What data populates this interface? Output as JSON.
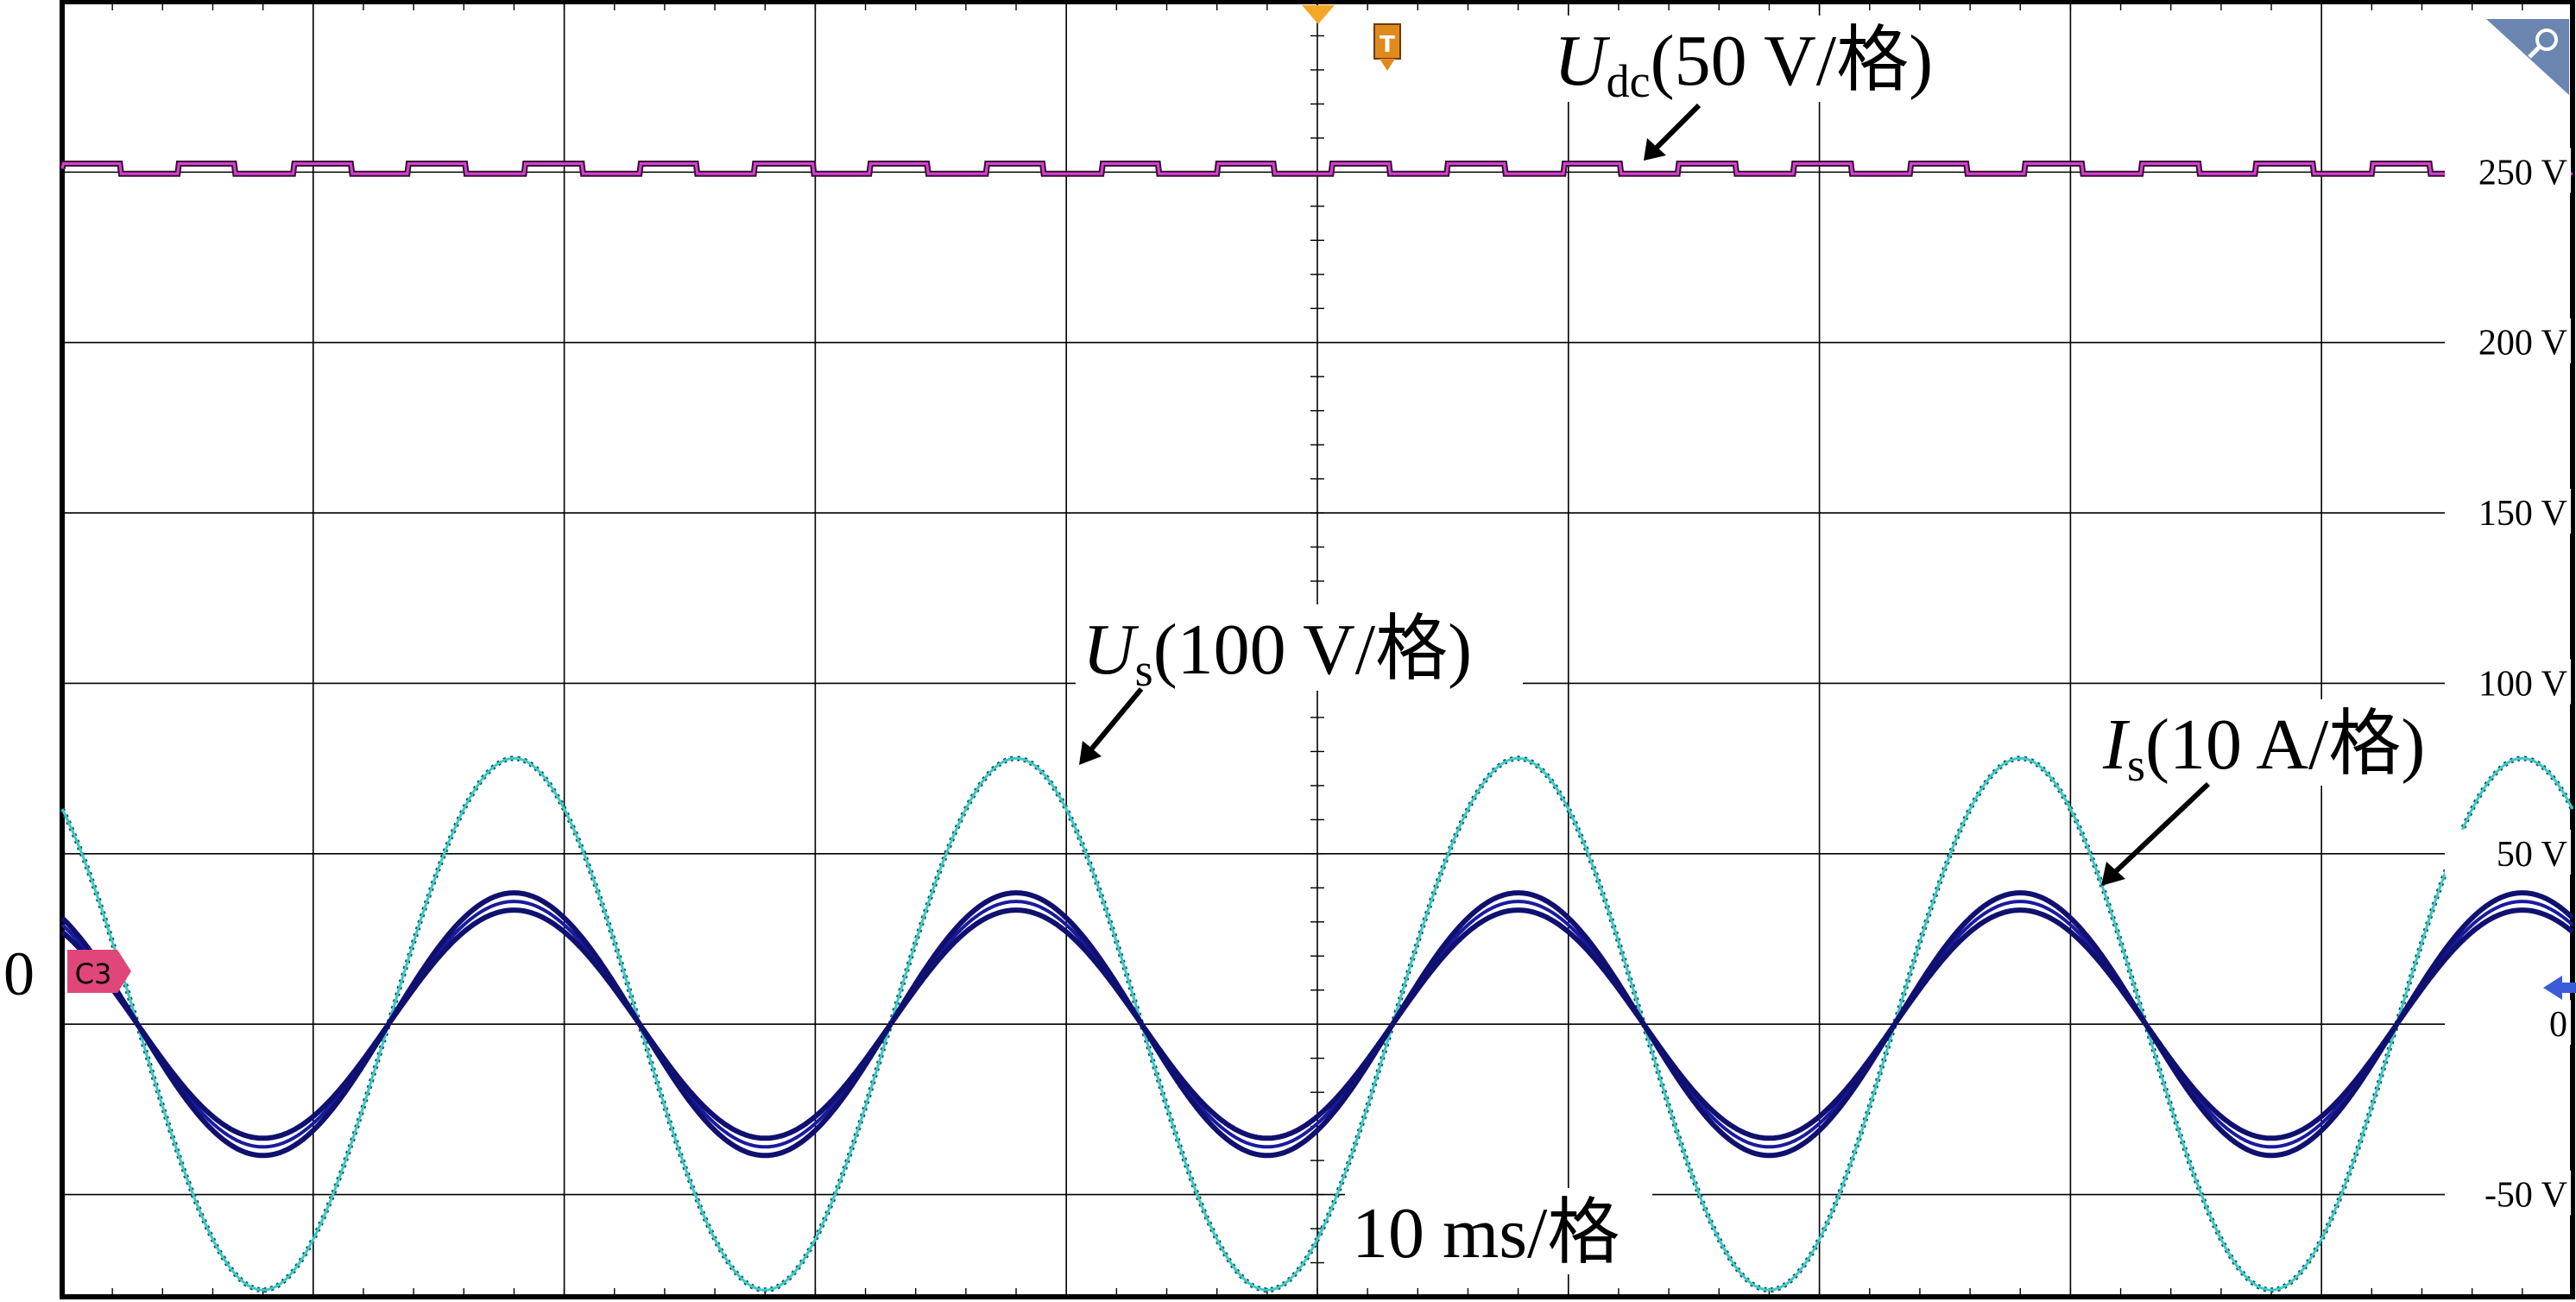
{
  "chart_data": {
    "type": "line",
    "timebase_label": "10 ms/格",
    "ground_label": "0",
    "channel_marker": "C3",
    "trigger_marker": "T",
    "x": {
      "unit": "ms",
      "range": [
        0,
        100
      ],
      "per_div": 10
    },
    "y": {
      "range": [
        -80,
        300
      ],
      "ticks": [
        {
          "value": 250,
          "label": "250 V"
        },
        {
          "value": 200,
          "label": "200 V"
        },
        {
          "value": 150,
          "label": "150 V"
        },
        {
          "value": 100,
          "label": "100 V"
        },
        {
          "value": 50,
          "label": "50 V"
        },
        {
          "value": 0,
          "label": "0"
        },
        {
          "value": -50,
          "label": "-50 V"
        }
      ]
    },
    "grid": true,
    "series": [
      {
        "name": "Udc",
        "label_main": "U",
        "label_sub": "dc",
        "label_scale": "(50 V/格)",
        "type": "dc",
        "level": 251,
        "ripple": 1.5,
        "color": "#d63fd6",
        "trace_color": "#3a1030"
      },
      {
        "name": "Us",
        "label_main": "U",
        "label_sub": "s",
        "label_scale": "(100 V/格)",
        "type": "sine",
        "amplitude": 78,
        "period_ms": 20,
        "first_peak_ms": 18,
        "color": "#3cc8c8"
      },
      {
        "name": "Is",
        "label_main": "I",
        "label_sub": "s",
        "label_scale": "(10 A/格)",
        "type": "sine",
        "amplitude": 36,
        "period_ms": 20,
        "first_peak_ms": 18,
        "color": "#1a1aa0"
      }
    ]
  }
}
